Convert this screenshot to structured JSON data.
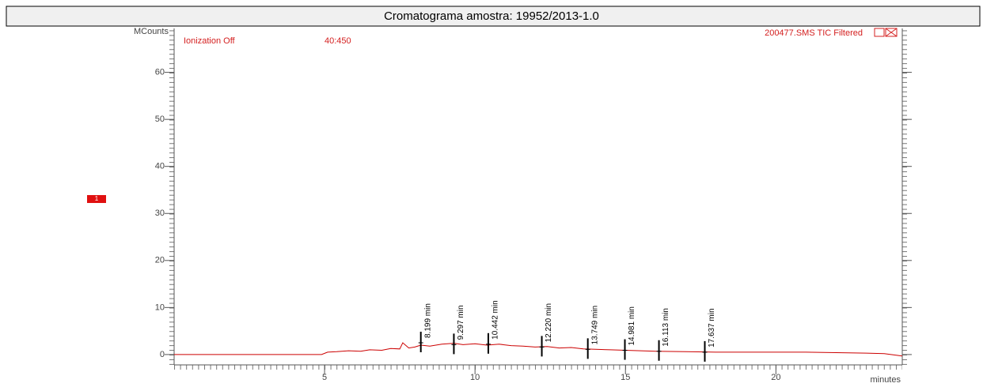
{
  "chart_data": {
    "type": "line",
    "title": "Cromatograma amostra: 19952/2013-1.0",
    "y_label": "MCounts",
    "x_label": "minutes",
    "annotations": [
      "Ionization Off",
      "40:450",
      "200477.SMS TIC Filtered"
    ],
    "segment_marker": "1",
    "xlim": [
      0,
      24.2
    ],
    "ylim": [
      -2.2,
      69
    ],
    "xticks": [
      5,
      10,
      15,
      20
    ],
    "yticks": [
      0,
      10,
      20,
      30,
      40,
      50,
      60
    ],
    "series": [
      {
        "color": "#cc0000",
        "x": [
          0,
          1,
          2,
          3,
          4,
          4.9,
          5.1,
          5.4,
          5.8,
          6.2,
          6.5,
          6.9,
          7.2,
          7.5,
          7.6,
          7.8,
          8.0,
          8.2,
          8.5,
          8.9,
          9.3,
          9.6,
          10.0,
          10.4,
          10.8,
          11.2,
          11.6,
          12.0,
          12.4,
          12.8,
          13.2,
          13.6,
          14.0,
          14.5,
          15.0,
          15.5,
          16.0,
          17.0,
          18.0,
          19.0,
          20.0,
          21.0,
          22.0,
          23.0,
          23.6,
          24.2
        ],
        "y": [
          0,
          0,
          0,
          0,
          0,
          0,
          0.5,
          0.6,
          0.8,
          0.7,
          1.0,
          0.9,
          1.3,
          1.2,
          2.5,
          1.4,
          1.6,
          2.0,
          1.8,
          2.2,
          2.4,
          2.1,
          2.3,
          2.0,
          2.2,
          1.9,
          1.8,
          1.6,
          1.7,
          1.4,
          1.5,
          1.2,
          1.1,
          1.0,
          0.9,
          0.8,
          0.7,
          0.6,
          0.5,
          0.5,
          0.5,
          0.5,
          0.4,
          0.3,
          0.2,
          -0.3
        ]
      }
    ],
    "peaks": {
      "times": [
        8.199,
        9.297,
        10.442,
        12.22,
        13.749,
        14.981,
        16.113,
        17.637
      ],
      "heights": [
        2.5,
        2.1,
        2.2,
        1.6,
        1.1,
        0.9,
        0.7,
        0.5
      ],
      "labels": [
        "8.199 min",
        "9.297 min",
        "10.442 min",
        "12.220 min",
        "13.749 min",
        "14.981 min",
        "16.113 min",
        "17.637 min"
      ]
    }
  }
}
